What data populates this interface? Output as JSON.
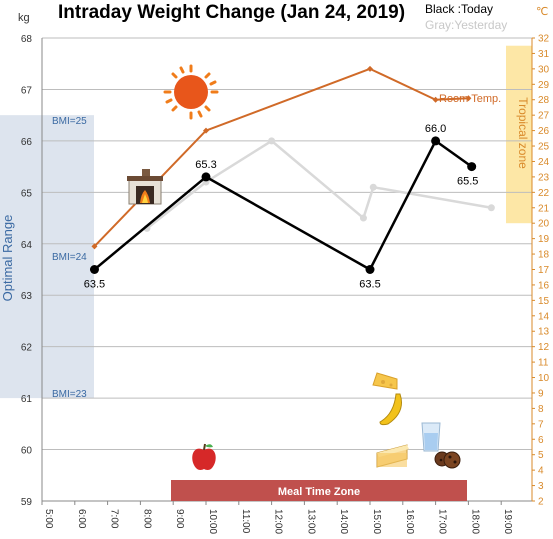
{
  "title": "Intraday Weight Change (Jan 24, 2019)",
  "legend": {
    "today": "Black :Today",
    "yesterday": "Gray:Yesterday"
  },
  "units": {
    "left": "kg",
    "right": "℃"
  },
  "annotations": {
    "optimal_range": "Optimal Range",
    "tropical_zone": "Tropical zone",
    "meal_time_zone": "Meal Time Zone",
    "room_temp": "Room Temp.",
    "bmi_25": "BMI=25",
    "bmi_24": "BMI=24",
    "bmi_23": "BMI=23"
  },
  "colors": {
    "today": "#000000",
    "yesterday": "#d9d9d9",
    "room_temp": "#d06a28",
    "optimal_band": "#dde4ee",
    "tropical_band": "#fde7a6",
    "meal_bar": "#c0504d",
    "right_axis": "#d98a2a"
  },
  "icons": [
    "sun-icon",
    "fireplace-icon",
    "apple-icon",
    "cheese-icon",
    "banana-icon",
    "cake-icon",
    "water-glass-icon",
    "cookies-icon"
  ],
  "chart_data": {
    "type": "line",
    "x_ticks": [
      "5:00",
      "6:00",
      "7:00",
      "8:00",
      "9:00",
      "10:00",
      "11:00",
      "12:00",
      "13:00",
      "14:00",
      "15:00",
      "16:00",
      "17:00",
      "18:00",
      "19:00"
    ],
    "ylim": [
      59,
      68
    ],
    "y2lim": [
      2,
      32
    ],
    "y_ticks": [
      59,
      60,
      61,
      62,
      63,
      64,
      65,
      66,
      67,
      68
    ],
    "y2_ticks": [
      2,
      3,
      4,
      5,
      6,
      7,
      8,
      9,
      10,
      11,
      12,
      13,
      14,
      15,
      16,
      17,
      18,
      19,
      20,
      21,
      22,
      23,
      24,
      25,
      26,
      27,
      28,
      29,
      30,
      31,
      32
    ],
    "series": [
      {
        "name": "Today",
        "axis": "left",
        "labeled": true,
        "points": [
          {
            "x": 6.6,
            "y": 63.5,
            "label": "63.5"
          },
          {
            "x": 10.0,
            "y": 65.3,
            "label": "65.3"
          },
          {
            "x": 15.0,
            "y": 63.5,
            "label": "63.5"
          },
          {
            "x": 17.0,
            "y": 66.0,
            "label": "66.0"
          },
          {
            "x": 18.1,
            "y": 65.5,
            "label": "65.5"
          }
        ]
      },
      {
        "name": "Yesterday",
        "axis": "left",
        "points": [
          {
            "x": 8.2,
            "y": 64.3
          },
          {
            "x": 10.0,
            "y": 65.2
          },
          {
            "x": 12.0,
            "y": 66.0
          },
          {
            "x": 14.8,
            "y": 64.5
          },
          {
            "x": 15.1,
            "y": 65.1
          },
          {
            "x": 18.7,
            "y": 64.7
          }
        ]
      },
      {
        "name": "Room Temp.",
        "axis": "right",
        "points": [
          {
            "x": 6.6,
            "y": 18.5
          },
          {
            "x": 10.0,
            "y": 26.0
          },
          {
            "x": 15.0,
            "y": 30.0
          },
          {
            "x": 17.0,
            "y": 28.0
          },
          {
            "x": 18.0,
            "y": 28.1
          }
        ]
      }
    ],
    "bands": [
      {
        "name": "Optimal Range",
        "axis": "left",
        "range": [
          61,
          66.5
        ]
      },
      {
        "name": "Tropical zone",
        "axis": "right",
        "range": [
          20,
          31.5
        ]
      },
      {
        "name": "Meal Time Zone",
        "x_range": [
          9.0,
          18.0
        ]
      }
    ]
  }
}
